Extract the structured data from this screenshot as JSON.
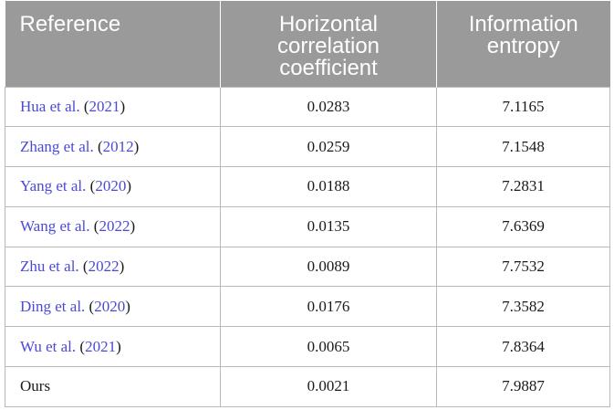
{
  "table": {
    "headers": [
      "Reference",
      "Horizontal correlation coefficient",
      "Information entropy"
    ],
    "rows": [
      {
        "author": "Hua et al.",
        "year": "2021",
        "corr": "0.0283",
        "entropy": "7.1165"
      },
      {
        "author": "Zhang et al.",
        "year": "2012",
        "corr": "0.0259",
        "entropy": "7.1548"
      },
      {
        "author": "Yang et al.",
        "year": "2020",
        "corr": "0.0188",
        "entropy": "7.2831"
      },
      {
        "author": "Wang et al.",
        "year": "2022",
        "corr": "0.0135",
        "entropy": "7.6369"
      },
      {
        "author": "Zhu et al.",
        "year": "2022",
        "corr": "0.0089",
        "entropy": "7.7532"
      },
      {
        "author": "Ding et al.",
        "year": "2020",
        "corr": "0.0176",
        "entropy": "7.3582"
      },
      {
        "author": "Wu et al.",
        "year": "2021",
        "corr": "0.0065",
        "entropy": "7.8364"
      }
    ],
    "ours": {
      "label": "Ours",
      "corr": "0.0021",
      "entropy": "7.9887"
    }
  },
  "colors": {
    "header_bg": "#9a9a9a",
    "link": "#4a4ad6",
    "border": "#b9b9b9"
  }
}
